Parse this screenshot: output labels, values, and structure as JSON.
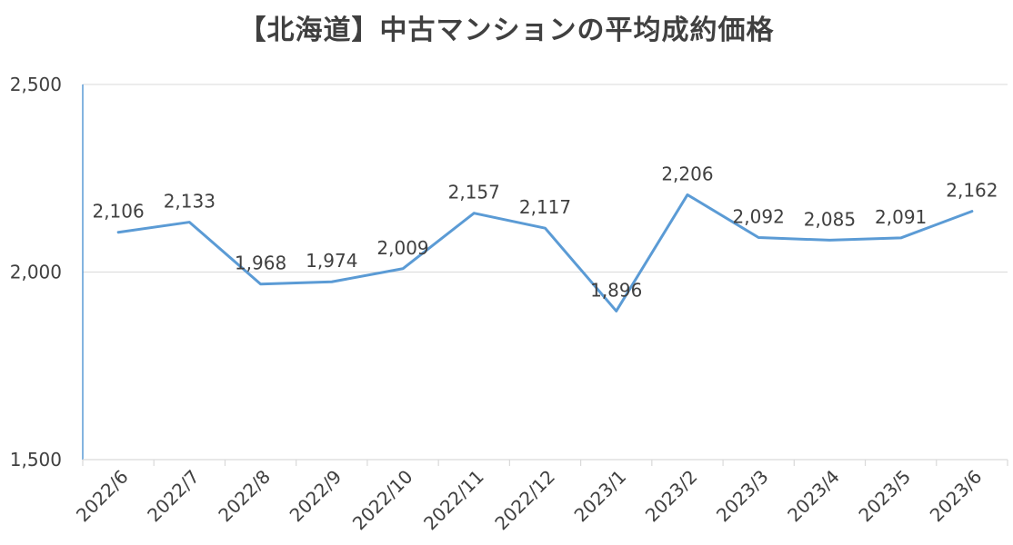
{
  "chart_data": {
    "type": "line",
    "title": "【北海道】中古マンションの平均成約価格",
    "categories": [
      "2022/6",
      "2022/7",
      "2022/8",
      "2022/9",
      "2022/10",
      "2022/11",
      "2022/12",
      "2023/1",
      "2023/2",
      "2023/3",
      "2023/4",
      "2023/5",
      "2023/6"
    ],
    "series": [
      {
        "values": [
          2106,
          2133,
          1968,
          1974,
          2009,
          2157,
          2117,
          1896,
          2206,
          2092,
          2085,
          2091,
          2162
        ],
        "labels": [
          "2,106",
          "2,133",
          "1,968",
          "1,974",
          "2,009",
          "2,157",
          "2,117",
          "1,896",
          "2,206",
          "2,092",
          "2,085",
          "2,091",
          "2,162"
        ],
        "color": "#5b9bd5"
      }
    ],
    "ylim": [
      1500,
      2500
    ],
    "yticks": [
      1500,
      2000,
      2500
    ],
    "ytick_labels": [
      "1,500",
      "2,000",
      "2,500"
    ],
    "grid": "horizontal",
    "legend": "none"
  }
}
